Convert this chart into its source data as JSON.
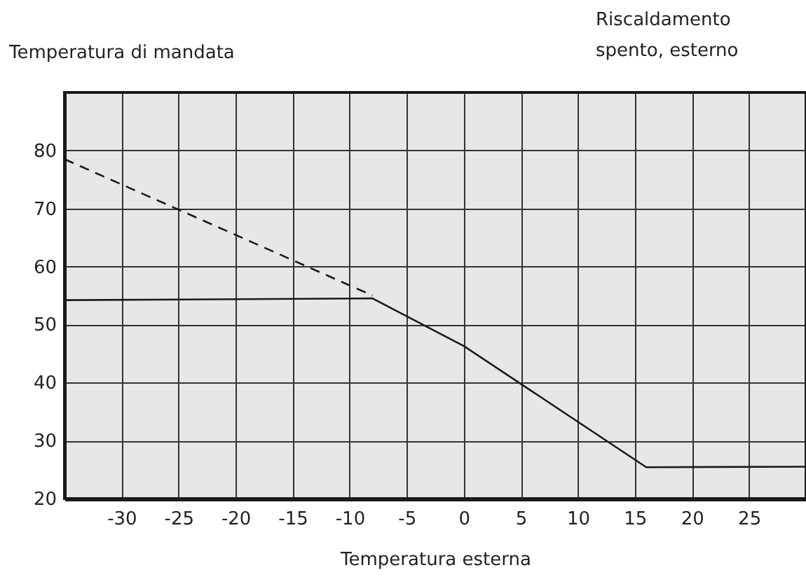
{
  "chart_data": {
    "type": "line",
    "xlabel": "Temperatura esterna",
    "ylabel": "Temperatura di mandata",
    "annotations": [
      "Riscaldamento\nspento, esterno"
    ],
    "series": [
      {
        "color": "#1a1a1a",
        "line_style": "solid",
        "x": [
          -35,
          -8,
          0,
          16,
          30
        ],
        "values": [
          54.2,
          54.5,
          46.3,
          25.4,
          25.5
        ]
      },
      {
        "color": "#1a1a1a",
        "line_style": "dashed",
        "x": [
          -35,
          -8
        ],
        "values": [
          78.5,
          55
        ]
      }
    ],
    "xlim": [
      -35,
      30
    ],
    "ylim": [
      20,
      90
    ],
    "xticks": [
      -30,
      -25,
      -20,
      -15,
      -10,
      -5,
      0,
      5,
      10,
      15,
      20,
      25
    ],
    "yticks": [
      20,
      30,
      40,
      50,
      60,
      70,
      80
    ],
    "grid": true,
    "marker": "none"
  }
}
